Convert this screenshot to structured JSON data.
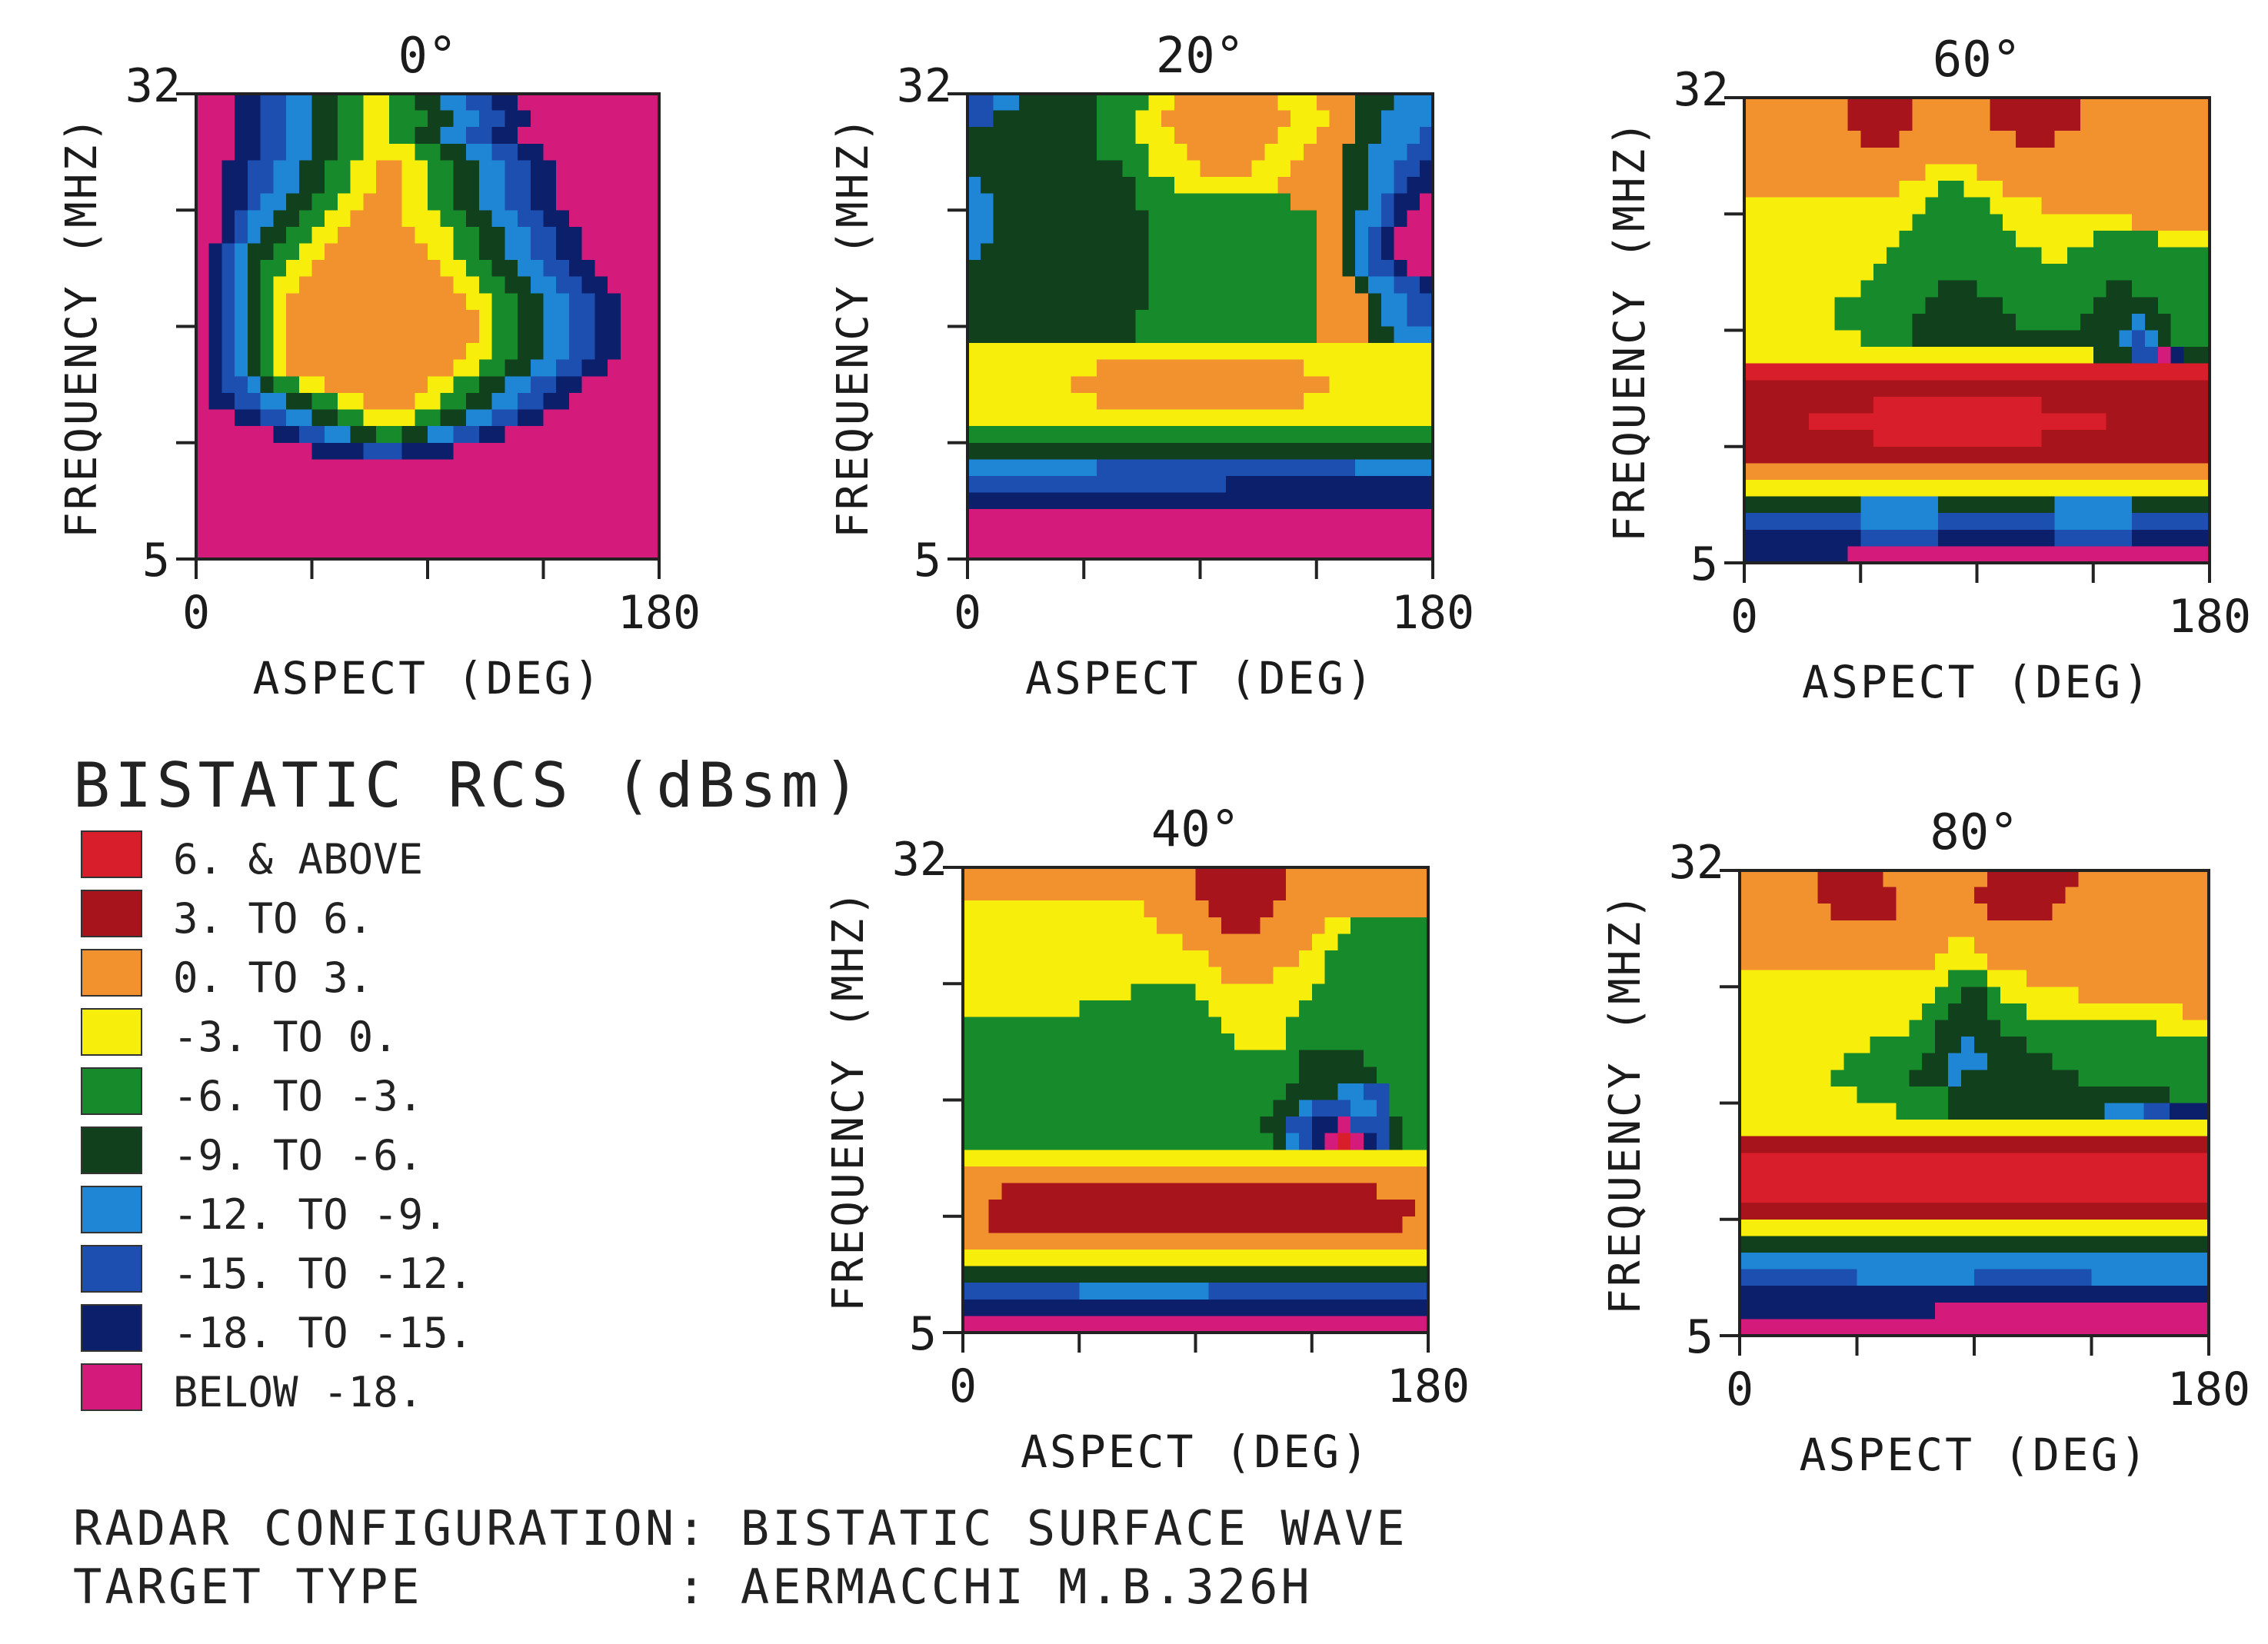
{
  "chart_data": [
    {
      "type": "heatmap",
      "title": "0°",
      "xlabel": "ASPECT (DEG)",
      "ylabel": "FREQUENCY (MHZ)",
      "xlim": [
        0,
        180
      ],
      "ylim": [
        5,
        32
      ],
      "x_tick_labels": [
        "0",
        "180"
      ],
      "y_tick_labels": [
        "5",
        "32"
      ],
      "grid_orientation": "rows listed top (32 MHz) to bottom (5 MHz), 36 aspect columns each",
      "z_codes": [
        "999887766554433445566778899999999999",
        "999887766554433444556677889999999999",
        "999887766554433445566778899999999999",
        "999887766554433334455667788999999999",
        "998877665544332233445566778899999999",
        "998877665544332233445566778899999999",
        "998876655443322233445566778899999999",
        "998766554433222233344556677889999999",
        "998765544332222223334455667788999999",
        "987655443322222222334455667788999999",
        "987654433222222222233445566778899999",
        "987654332222222222223344556677889999",
        "987654322222222222222334455667788999",
        "987654322222222222222234455667788999",
        "987654322222222222222234455667788999",
        "987654322222222222222334455667788999",
        "987654322222222222223344556677889999",
        "987765443322222222334455667788999999",
        "988776655443322223344556677889999999",
        "999887766554433334455667788999999999",
        "999999887766554455667788999999999999",
        "999999999888877788889999999999999999",
        "999999999999999999999999999999999999",
        "999999999999999999999999999999999999",
        "999999999999999999999999999999999999",
        "999999999999999999999999999999999999",
        "999999999999999999999999999999999999",
        "999999999999999999999999999999999999"
      ]
    },
    {
      "type": "heatmap",
      "title": "20°",
      "xlabel": "ASPECT (DEG)",
      "ylabel": "FREQUENCY (MHZ)",
      "xlim": [
        0,
        180
      ],
      "ylim": [
        5,
        32
      ],
      "x_tick_labels": [
        "0",
        "180"
      ],
      "y_tick_labels": [
        "5",
        "32"
      ],
      "grid_orientation": "rows listed top (32 MHz) to bottom (5 MHz), 36 aspect columns each",
      "z_codes": [
        "776655555544443322222222333222555666",
        "775555555544433222222222233322556666",
        "555555555544433322222222333222556667",
        "555555555544443332222223332225566677",
        "555555555555443333222233322225566778",
        "655555555555544433333333222225566788",
        "665555555555544444444444422225567889",
        "665555555555554444444444444225667899",
        "665555555555554444444444444225678999",
        "655555555555554444444444444225678999",
        "555555555555554444444444444225677899",
        "555555555555554444444444444222566778",
        "555555555555554444444444444222256677",
        "555555555555544444444444444222256677",
        "555555555555544444444444444222255666",
        "333333333333333333333333333333333333",
        "333333333322222222222222223333333333",
        "333333332222222222222222222233333333",
        "333333333322222222222222223333333333",
        "333333333333333333333333333333333333",
        "444444444444444444444444444444444444",
        "555555555555555555555555555555555555",
        "666666666677777777777777777777666666",
        "777777777777777777778888888888888888",
        "888888888888888888888888888888888888",
        "999999999999999999999999999999999999",
        "999999999999999999999999999999999999",
        "999999999999999999999999999999999999"
      ]
    },
    {
      "type": "heatmap",
      "title": "60°",
      "xlabel": "ASPECT (DEG)",
      "ylabel": "FREQUENCY (MHZ)",
      "xlim": [
        0,
        180
      ],
      "ylim": [
        5,
        32
      ],
      "x_tick_labels": [
        "0",
        "180"
      ],
      "y_tick_labels": [
        "5",
        "32"
      ],
      "grid_orientation": "rows listed top (32 MHz) to bottom (5 MHz), 36 aspect columns each",
      "z_codes": [
        "222222221111122222211111112222222222",
        "222222221111122222211111112222222222",
        "222222222111222222222111222222222222",
        "222222222222222222222222222222222222",
        "222222222222223333222222222222222222",
        "222222222222333443332222222222222222",
        "333333333333334444433332222222222222",
        "333333333333344444443333333333222222",
        "333333333333444444444333333444443333",
        "333333333334444444444443344444444444",
        "333333333344444444444444444444444444",
        "333333333444444555444444444455444444",
        "333333344444445555554444444555554444",
        "333333344444455555555444445555655444",
        "333333333444455555555555555556765444",
        "333333333333333333333333333555779855",
        "000000000000000000000000000000000000",
        "111111111111111111111111111111111111",
        "111111111100000000000001111111111111",
        "111110000000000000000000000011111111",
        "111111111100000000000001111111111111",
        "111111111111111111111111111111111111",
        "222222222222222222222222222222222222",
        "333333333333333333333333333333333333",
        "555555555666666555555555666666555555",
        "777777777666666777777777666666777777",
        "888888888777777888888888777777888888",
        "888888889999999999999999999999999999"
      ]
    },
    {
      "type": "heatmap",
      "title": "40°",
      "xlabel": "ASPECT (DEG)",
      "ylabel": "FREQUENCY (MHZ)",
      "xlim": [
        0,
        180
      ],
      "ylim": [
        5,
        32
      ],
      "x_tick_labels": [
        "0",
        "180"
      ],
      "y_tick_labels": [
        "5",
        "32"
      ],
      "grid_orientation": "rows listed top (32 MHz) to bottom (5 MHz), 36 aspect columns each",
      "z_codes": [
        "222222222222222222111111122222222222",
        "222222222222222222111111122222222222",
        "333333333333332222211111222222222222",
        "333333333333333222221112222233444444",
        "333333333333333332222222222334444444",
        "333333333333333333322222223344444444",
        "333333333333333333332222333344444444",
        "333333333333344444333333333444444444",
        "333333333444444444433333334444444444",
        "444444444444444444443333344444444444",
        "444444444444444444444333344444444444",
        "444444444444444444444444445555544444",
        "444444444444444444444444445555554444",
        "444444444444444444444444455556677444",
        "444444444444444444444444556777667444",
        "444444444444444444444445577889777544",
        "444444444444444444444444567890987544",
        "333333333333333333333333333333333333",
        "222222222222222222222222222222222222",
        "222111111111111111111111111111112222",
        "221111111111111111111111111111111112",
        "221111111111111111111111111111111122",
        "222222222222222222222222222222222222",
        "333333333333333333333333333333333333",
        "555555555555555555555555555555555555",
        "777777777666666666677777777777777777",
        "888888888888888888888888888888888888",
        "999999999999999999999999999999999999"
      ]
    },
    {
      "type": "heatmap",
      "title": "80°",
      "xlabel": "ASPECT (DEG)",
      "ylabel": "FREQUENCY (MHZ)",
      "xlim": [
        0,
        180
      ],
      "ylim": [
        5,
        32
      ],
      "x_tick_labels": [
        "0",
        "180"
      ],
      "y_tick_labels": [
        "5",
        "32"
      ],
      "grid_orientation": "rows listed top (32 MHz) to bottom (5 MHz), 36 aspect columns each",
      "z_codes": [
        "222222111112222222211111112222222222",
        "222222111111222222111111122222222222",
        "222222211111222222211111222222222222",
        "222222222222222222222222222222222222",
        "222222222222222233222222222222222222",
        "222222222222222333322222222222222222",
        "333333333333333344433322222222222222",
        "333333333333333445543333332222222222",
        "333333333333334455544433333333333322",
        "333333333333344555554444444444443333",
        "333333333344444556555544444444444444",
        "333333334444445566655555444444444444",
        "333333344444455565555555554444444444",
        "333333333444444455555555555555555444",
        "333333333333444455555555555566677888",
        "333333333333333333333333333333333333",
        "111111111111111111111111111111111111",
        "000000000000000000000000000000000000",
        "000000000000000000000000000000000000",
        "000000000000000000000000000000000000",
        "111111111111111111111111111111111111",
        "333333333333333333333333333333333333",
        "555555555555555555555555555555555555",
        "666666666666666666666666666666666666",
        "777777777666666666777777777666666666",
        "888888888888888888888888888888888888",
        "888888888888888999999999999999999999",
        "999999999999999999999999999999999999"
      ]
    }
  ],
  "legend": {
    "title": "BISTATIC RCS (dBsm)",
    "items": [
      {
        "code": "0",
        "label": "6. & ABOVE",
        "color": "#d81e2a"
      },
      {
        "code": "1",
        "label": "3. TO 6.",
        "color": "#a8141c"
      },
      {
        "code": "2",
        "label": "0. TO 3.",
        "color": "#f2922e"
      },
      {
        "code": "3",
        "label": "-3. TO 0.",
        "color": "#f8ee0c"
      },
      {
        "code": "4",
        "label": "-6. TO -3.",
        "color": "#178a2c"
      },
      {
        "code": "5",
        "label": "-9. TO -6.",
        "color": "#10401c"
      },
      {
        "code": "6",
        "label": "-12. TO -9.",
        "color": "#1f86d6"
      },
      {
        "code": "7",
        "label": "-15. TO -12.",
        "color": "#1d4fb0"
      },
      {
        "code": "8",
        "label": "-18. TO -15.",
        "color": "#0c1f6a"
      },
      {
        "code": "9",
        "label": "BELOW -18.",
        "color": "#d41a7a"
      }
    ]
  },
  "config": {
    "radar_label": "RADAR CONFIGURATION: BISTATIC SURFACE WAVE",
    "target_label": "TARGET TYPE        : AERMACCHI M.B.326H"
  }
}
